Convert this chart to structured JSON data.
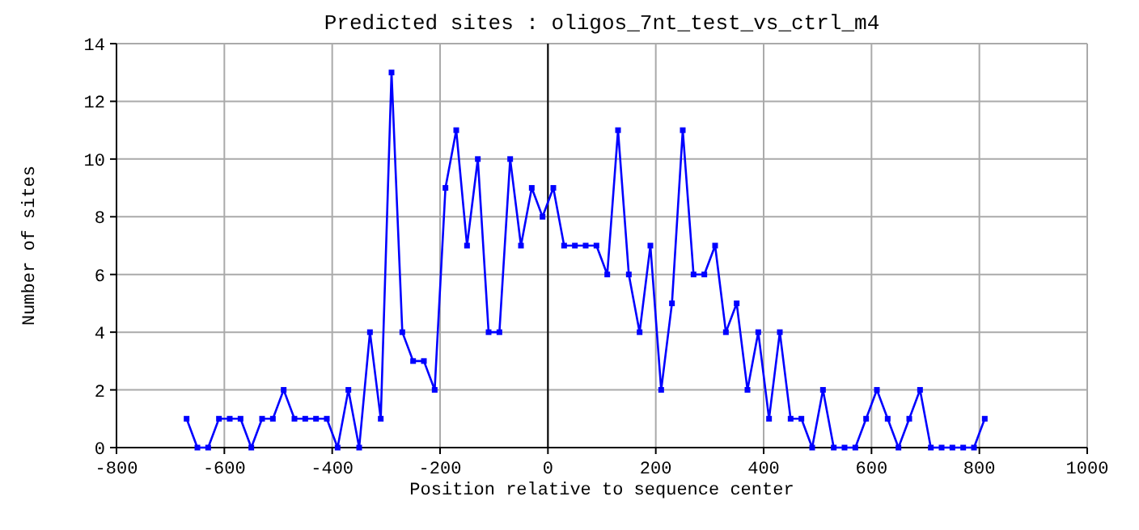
{
  "chart_data": {
    "type": "line",
    "title": "Predicted sites : oligos_7nt_test_vs_ctrl_m4",
    "xlabel": "Position relative to sequence center",
    "ylabel": "Number of sites",
    "x": [
      -670,
      -650,
      -630,
      -610,
      -590,
      -570,
      -550,
      -530,
      -510,
      -490,
      -470,
      -450,
      -430,
      -410,
      -390,
      -370,
      -350,
      -330,
      -310,
      -290,
      -270,
      -250,
      -230,
      -210,
      -190,
      -170,
      -150,
      -130,
      -110,
      -90,
      -70,
      -50,
      -30,
      -10,
      10,
      30,
      50,
      70,
      90,
      110,
      130,
      150,
      170,
      190,
      210,
      230,
      250,
      270,
      290,
      310,
      330,
      350,
      370,
      390,
      410,
      430,
      450,
      470,
      490,
      510,
      530,
      550,
      570,
      590,
      610,
      630,
      650,
      670,
      690,
      710,
      730,
      750,
      770,
      790,
      810
    ],
    "series": [
      {
        "color": "#0000ff",
        "values": [
          1,
          0,
          0,
          1,
          1,
          1,
          0,
          1,
          1,
          2,
          1,
          1,
          1,
          1,
          0,
          2,
          0,
          4,
          1,
          13,
          4,
          3,
          3,
          2,
          9,
          11,
          7,
          10,
          4,
          4,
          10,
          7,
          9,
          8,
          9,
          7,
          7,
          7,
          7,
          6,
          11,
          6,
          4,
          7,
          2,
          5,
          11,
          6,
          6,
          7,
          4,
          5,
          2,
          4,
          1,
          4,
          1,
          1,
          0,
          2,
          0,
          0,
          0,
          1,
          2,
          1,
          0,
          1,
          2,
          0,
          0,
          0,
          0,
          0,
          1
        ]
      }
    ],
    "xlim": [
      -800,
      1000
    ],
    "xticks": [
      -800,
      -600,
      -400,
      -200,
      0,
      200,
      400,
      600,
      800,
      1000
    ],
    "ylim": [
      0,
      14
    ],
    "yticks": [
      0,
      2,
      4,
      6,
      8,
      10,
      12,
      14
    ],
    "ref_lines": [
      {
        "axis": "x",
        "value": 0,
        "color": "#000000"
      }
    ],
    "grid": true,
    "marker": "square",
    "line_style": "solid"
  }
}
